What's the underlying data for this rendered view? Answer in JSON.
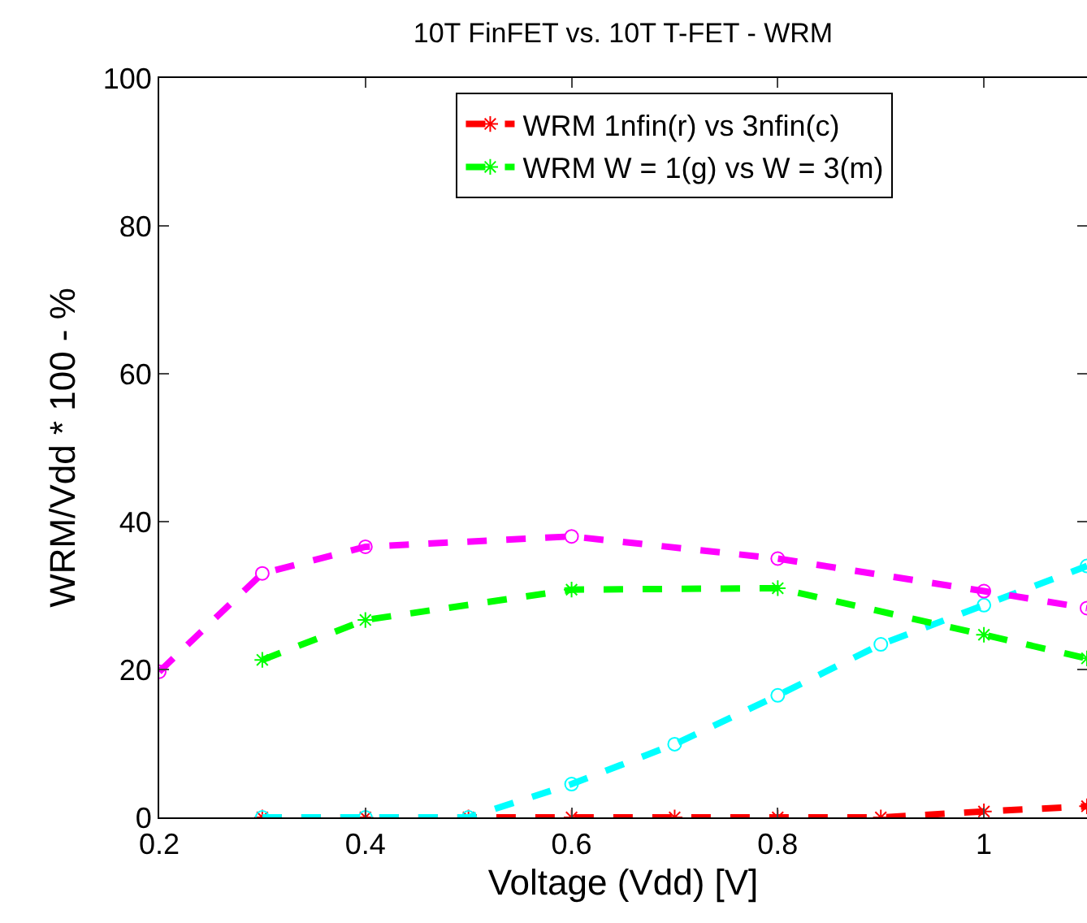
{
  "chart_data": {
    "type": "line",
    "title": "10T FinFET vs. 10T T-FET - WRM",
    "xlabel": "Voltage (Vdd) [V]",
    "ylabel": "WRM/Vdd * 100 - %",
    "series": [
      {
        "color": "#ff00ff",
        "marker": "circle",
        "x": [
          0.2,
          0.3,
          0.4,
          0.6,
          0.8,
          1.0,
          1.1
        ],
        "values": [
          19.7,
          33,
          36.6,
          38,
          35,
          30.6,
          28.3
        ]
      },
      {
        "name": "WRM W = 1(g) vs W = 3(m)",
        "color": "#00ff00",
        "marker": "cross",
        "x": [
          0.3,
          0.4,
          0.6,
          0.8,
          1.0,
          1.1
        ],
        "values": [
          21.3,
          26.7,
          30.8,
          31,
          24.7,
          21.5
        ]
      },
      {
        "color": "#00ffff",
        "marker": "circle",
        "x": [
          0.3,
          0.4,
          0.5,
          0.6,
          0.7,
          0.8,
          0.9,
          1.0,
          1.1
        ],
        "values": [
          0,
          0,
          0,
          4.5,
          9.9,
          16.5,
          23.4,
          28.7,
          34
        ]
      },
      {
        "name": "WRM 1nfin(r) vs 3nfin(c)",
        "color": "#ff0000",
        "marker": "cross",
        "x": [
          0.3,
          0.4,
          0.5,
          0.6,
          0.7,
          0.8,
          0.9,
          1.0,
          1.1
        ],
        "values": [
          0,
          0,
          0,
          0,
          0,
          0,
          0,
          0.8,
          1.5
        ]
      }
    ],
    "xlim": [
      0.2,
      1.1
    ],
    "xticks": [
      {
        "value": 0.2,
        "label": "0.2"
      },
      {
        "value": 0.4,
        "label": "0.4"
      },
      {
        "value": 0.6,
        "label": "0.6"
      },
      {
        "value": 0.8,
        "label": "0.8"
      },
      1
    ],
    "ylim": [
      0,
      100
    ],
    "yticks": [
      0,
      20,
      40,
      60,
      80,
      100
    ],
    "grid": false,
    "legend": "top right",
    "line_style": "dashed"
  }
}
